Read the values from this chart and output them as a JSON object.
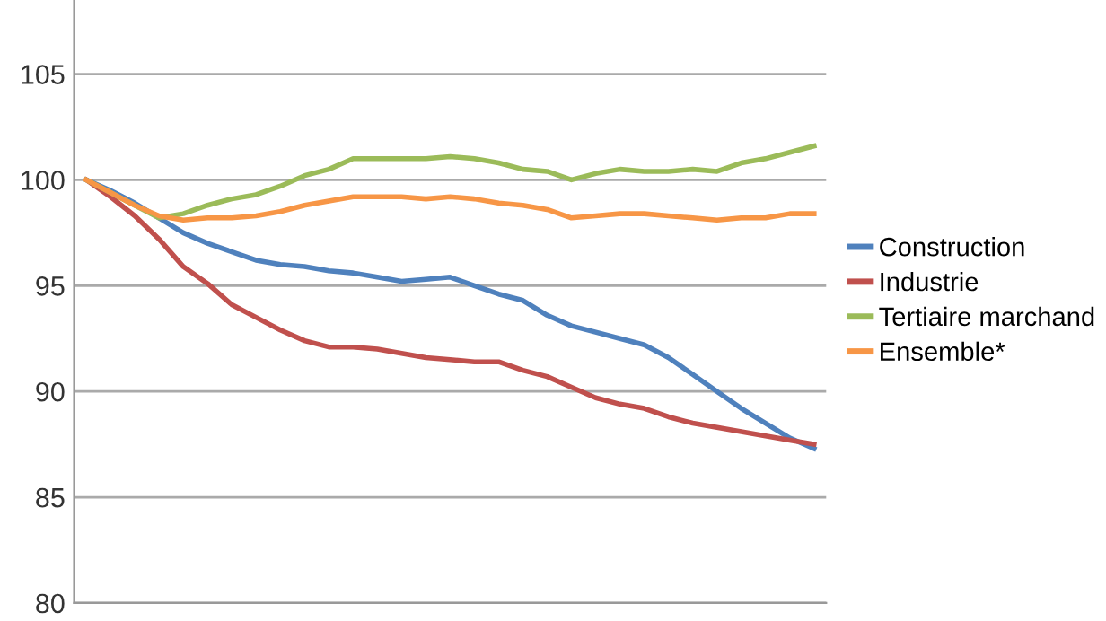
{
  "chart_data": {
    "type": "line",
    "categories": [
      null,
      null,
      null,
      null,
      null,
      null,
      null,
      null,
      null,
      null,
      null,
      null,
      null,
      null,
      null,
      null,
      null,
      null,
      null,
      null,
      null,
      null,
      null,
      null,
      null,
      null,
      null,
      null,
      null,
      null,
      null
    ],
    "series": [
      {
        "name": "Construction",
        "color": "#4f81bd",
        "values": [
          100,
          99.5,
          98.9,
          98.2,
          97.5,
          97.0,
          96.6,
          96.2,
          96.0,
          95.9,
          95.7,
          95.6,
          95.4,
          95.2,
          95.3,
          95.4,
          95.0,
          94.6,
          94.3,
          93.6,
          93.1,
          92.8,
          92.5,
          92.2,
          91.6,
          90.8,
          90.0,
          89.2,
          88.5,
          87.8,
          87.3
        ]
      },
      {
        "name": "Industrie",
        "color": "#c0504d",
        "values": [
          100,
          99.2,
          98.3,
          97.2,
          95.9,
          95.1,
          94.1,
          93.5,
          92.9,
          92.4,
          92.1,
          92.1,
          92.0,
          91.8,
          91.6,
          91.5,
          91.4,
          91.4,
          91.0,
          90.7,
          90.2,
          89.7,
          89.4,
          89.2,
          88.8,
          88.5,
          88.3,
          88.1,
          87.9,
          87.7,
          87.5
        ]
      },
      {
        "name": "Tertiaire marchand",
        "color": "#9bbb59",
        "values": [
          100,
          99.4,
          98.8,
          98.2,
          98.4,
          98.8,
          99.1,
          99.3,
          99.7,
          100.2,
          100.5,
          101.0,
          101.0,
          101.0,
          101.0,
          101.1,
          101.0,
          100.8,
          100.5,
          100.4,
          100.0,
          100.3,
          100.5,
          100.4,
          100.4,
          100.5,
          100.4,
          100.8,
          101.0,
          101.3,
          101.6
        ]
      },
      {
        "name": "Ensemble*",
        "color": "#f79646",
        "values": [
          100,
          99.4,
          98.8,
          98.3,
          98.1,
          98.2,
          98.2,
          98.3,
          98.5,
          98.8,
          99.0,
          99.2,
          99.2,
          99.2,
          99.1,
          99.2,
          99.1,
          98.9,
          98.8,
          98.6,
          98.2,
          98.3,
          98.4,
          98.4,
          98.3,
          98.2,
          98.1,
          98.2,
          98.2,
          98.4,
          98.4
        ]
      }
    ],
    "ylim": [
      80,
      108.5
    ],
    "yticks": [
      80,
      85,
      90,
      95,
      100,
      105
    ],
    "grid": "y",
    "legend": "right",
    "tick_labels": "y",
    "marker": "none",
    "line_style": "solid"
  }
}
